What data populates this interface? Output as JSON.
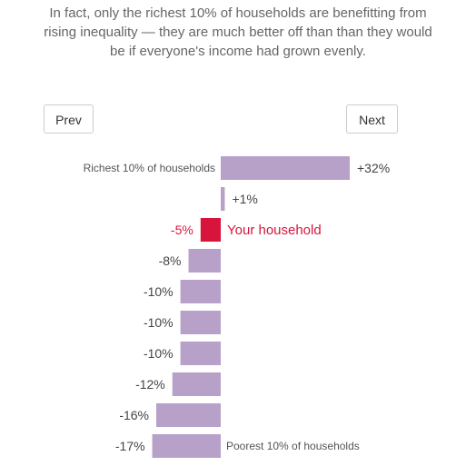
{
  "intro_text": "In fact, only the richest 10% of households are benefitting from rising inequality — they are much better off than than they would be if everyone's income had grown evenly.",
  "nav": {
    "prev_label": "Prev",
    "next_label": "Next"
  },
  "colors": {
    "bar": "#b8a1c9",
    "highlight": "#d7143b",
    "text": "#555555"
  },
  "chart_data": {
    "type": "bar",
    "orientation": "horizontal",
    "unit": "%",
    "rows": [
      {
        "label": "+32%",
        "value": 32,
        "caption": "Richest 10% of households",
        "highlight": false
      },
      {
        "label": "+1%",
        "value": 1,
        "caption": "",
        "highlight": false
      },
      {
        "label": "-5%",
        "value": -5,
        "caption": "Your household",
        "highlight": true
      },
      {
        "label": "-8%",
        "value": -8,
        "caption": "",
        "highlight": false
      },
      {
        "label": "-10%",
        "value": -10,
        "caption": "",
        "highlight": false
      },
      {
        "label": "-10%",
        "value": -10,
        "caption": "",
        "highlight": false
      },
      {
        "label": "-10%",
        "value": -10,
        "caption": "",
        "highlight": false
      },
      {
        "label": "-12%",
        "value": -12,
        "caption": "",
        "highlight": false
      },
      {
        "label": "-16%",
        "value": -16,
        "caption": "",
        "highlight": false
      },
      {
        "label": "-17%",
        "value": -17,
        "caption": "Poorest 10% of households",
        "highlight": false
      }
    ]
  }
}
